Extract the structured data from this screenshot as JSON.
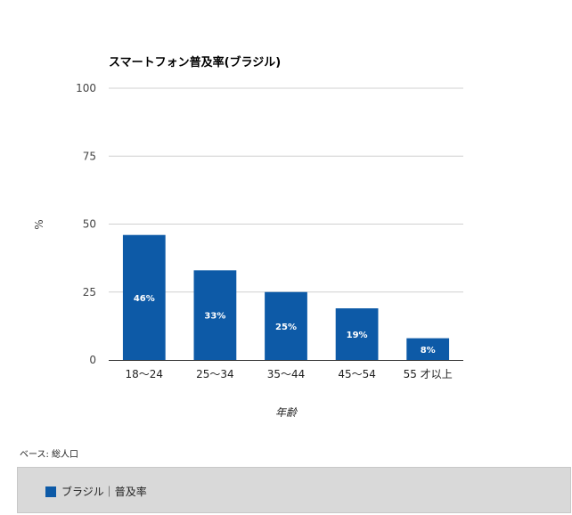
{
  "colors": {
    "bar": "#0d5aa7",
    "grid": "#d0d0d0",
    "axis": "#333333"
  },
  "chart_data": {
    "type": "bar",
    "title": "スマートフォン普及率(ブラジル)",
    "xlabel": "年齢",
    "ylabel": "%",
    "ylim": [
      0,
      100
    ],
    "yticks": [
      0,
      25,
      50,
      75,
      100
    ],
    "grid": true,
    "categories": [
      "18〜24",
      "25〜34",
      "35〜44",
      "45〜54",
      "55 才以上"
    ],
    "series": [
      {
        "name": "ブラジル｜普及率",
        "values": [
          46,
          33,
          25,
          19,
          8
        ],
        "labels": [
          "46%",
          "33%",
          "25%",
          "19%",
          "8%"
        ]
      }
    ],
    "legend": "bottom"
  },
  "footnote": "ベース: 総人口"
}
